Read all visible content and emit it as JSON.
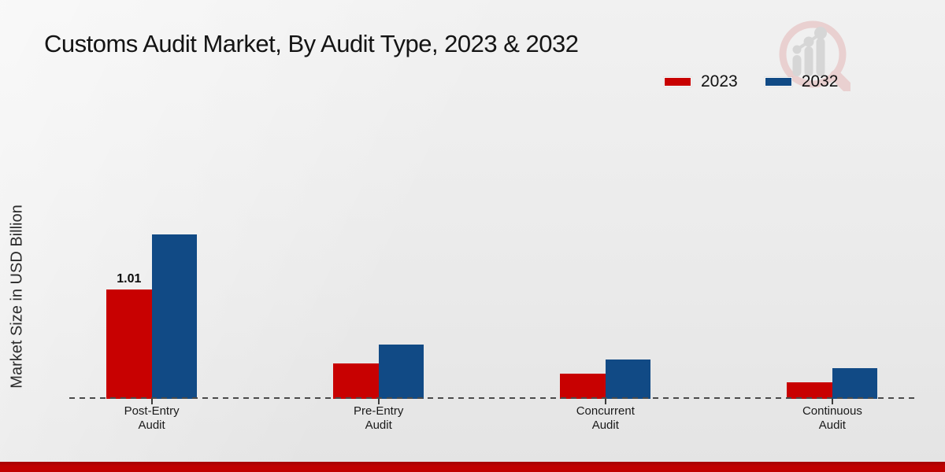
{
  "page": {
    "title": "Customs Audit Market, By Audit Type, 2023 & 2032",
    "ylabel": "Market Size in USD Billion"
  },
  "legend": {
    "items": [
      {
        "label": "2023",
        "color": "#c80101"
      },
      {
        "label": "2032",
        "color": "#114a85"
      }
    ]
  },
  "icons": {
    "watermark": "magnifier-growth-chart-logo"
  },
  "colors": {
    "series_2023": "#c80101",
    "series_2032": "#114a85",
    "baseline": "#4a4a4a",
    "bottom_strip": "#c00101",
    "background": "#ebebeb"
  },
  "chart_data": {
    "type": "bar",
    "title": "Customs Audit Market, By Audit Type, 2023 & 2032",
    "xlabel": "",
    "ylabel": "Market Size in USD Billion",
    "categories": [
      "Post-Entry Audit",
      "Pre-Entry Audit",
      "Concurrent Audit",
      "Continuous Audit"
    ],
    "series": [
      {
        "name": "2023",
        "color": "#c80101",
        "values": [
          1.01,
          0.33,
          0.23,
          0.15
        ]
      },
      {
        "name": "2032",
        "color": "#114a85",
        "values": [
          1.52,
          0.5,
          0.36,
          0.28
        ]
      }
    ],
    "annotations": [
      {
        "series_index": 0,
        "category_index": 0,
        "text": "1.01"
      }
    ],
    "ylim": [
      0,
      1.6
    ],
    "grid": false,
    "y_tick_labels_visible": false,
    "legend_position": "top-right",
    "baseline_style": "dashed"
  }
}
